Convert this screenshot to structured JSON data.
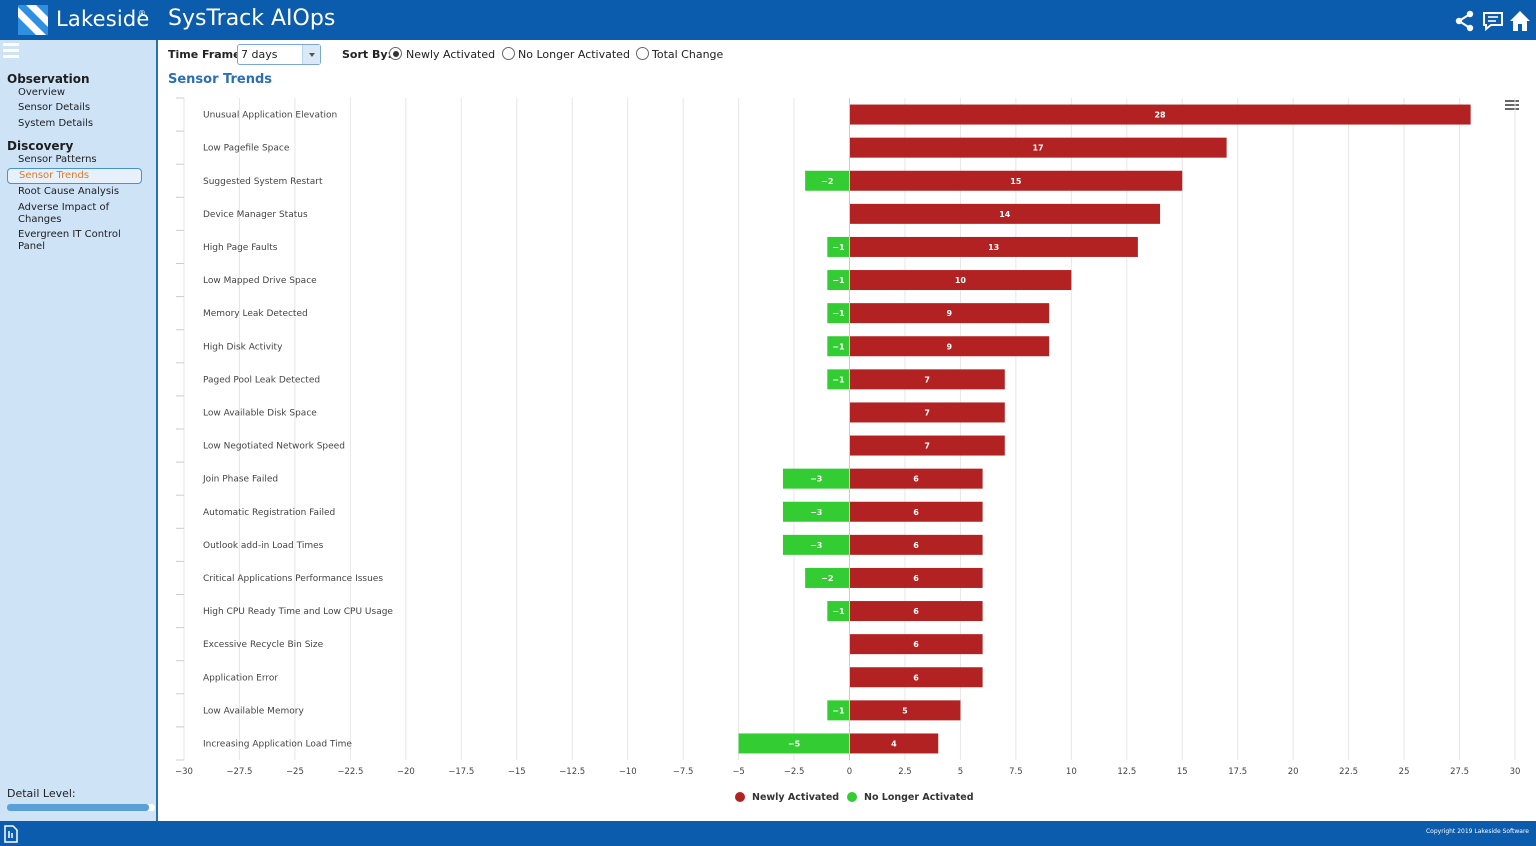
{
  "header": {
    "brand": "Lakeside",
    "brand_mark": "®",
    "title": "SysTrack AIOps",
    "icons": [
      "share-icon",
      "chat-icon",
      "home-icon"
    ]
  },
  "sidebar": {
    "sections": [
      {
        "heading": "Observation",
        "items": [
          "Overview",
          "Sensor Details",
          "System Details"
        ]
      },
      {
        "heading": "Discovery",
        "items": [
          "Sensor Patterns",
          "Sensor Trends",
          "Root Cause Analysis",
          "Adverse Impact of Changes",
          "Evergreen IT Control Panel"
        ]
      }
    ],
    "active_item": "Sensor Trends",
    "detail_level_label": "Detail Level:",
    "detail_level_value": 0.96
  },
  "controls": {
    "timeframe_label": "Time Frame:",
    "timeframe_value": "7 days",
    "sortby_label": "Sort By:",
    "sort_options": [
      {
        "label": "Newly Activated",
        "selected": true
      },
      {
        "label": "No Longer Activated",
        "selected": false
      },
      {
        "label": "Total Change",
        "selected": false
      }
    ]
  },
  "section_title": "Sensor Trends",
  "footer": {
    "copyright": "Copyright 2019 Lakeside Software"
  },
  "colors": {
    "newly": "#b22222",
    "nolonger": "#33cc33",
    "header": "#0b5cad",
    "sidebar": "#cfe3f7",
    "accent": "#e07a2a"
  },
  "chart_data": {
    "type": "bar",
    "orientation": "horizontal",
    "categories": [
      "Unusual Application Elevation",
      "Low Pagefile Space",
      "Suggested System Restart",
      "Device Manager Status",
      "High Page Faults",
      "Low Mapped Drive Space",
      "Memory Leak Detected",
      "High Disk Activity",
      "Paged Pool Leak Detected",
      "Low Available Disk Space",
      "Low Negotiated Network Speed",
      "Join Phase Failed",
      "Automatic Registration Failed",
      "Outlook add-in Load Times",
      "Critical Applications Performance Issues",
      "High CPU Ready Time and Low CPU Usage",
      "Excessive Recycle Bin Size",
      "Application Error",
      "Low Available Memory",
      "Increasing Application Load Time"
    ],
    "series": [
      {
        "name": "Newly Activated",
        "color": "#b22222",
        "values": [
          28,
          17,
          15,
          14,
          13,
          10,
          9,
          9,
          7,
          7,
          7,
          6,
          6,
          6,
          6,
          6,
          6,
          6,
          5,
          4
        ]
      },
      {
        "name": "No Longer Activated",
        "color": "#33cc33",
        "values": [
          0,
          0,
          -2,
          0,
          -1,
          -1,
          -1,
          -1,
          -1,
          0,
          0,
          -3,
          -3,
          -3,
          -2,
          -1,
          0,
          0,
          -1,
          -5
        ]
      }
    ],
    "xlim": [
      -30,
      30
    ],
    "xticks": [
      -30,
      -27.5,
      -25,
      -22.5,
      -20,
      -17.5,
      -15,
      -12.5,
      -10,
      -7.5,
      -5,
      -2.5,
      0,
      2.5,
      5,
      7.5,
      10,
      12.5,
      15,
      17.5,
      20,
      22.5,
      25,
      27.5,
      30
    ],
    "xtick_labels": [
      "−30",
      "−27.5",
      "−25",
      "−22.5",
      "−20",
      "−17.5",
      "−15",
      "−12.5",
      "−10",
      "−7.5",
      "−5",
      "−2.5",
      "0",
      "2.5",
      "5",
      "7.5",
      "10",
      "12.5",
      "15",
      "17.5",
      "20",
      "22.5",
      "25",
      "27.5",
      "30"
    ],
    "legend": [
      "Newly Activated",
      "No Longer Activated"
    ],
    "legend_position": "bottom-center",
    "grid": true
  }
}
